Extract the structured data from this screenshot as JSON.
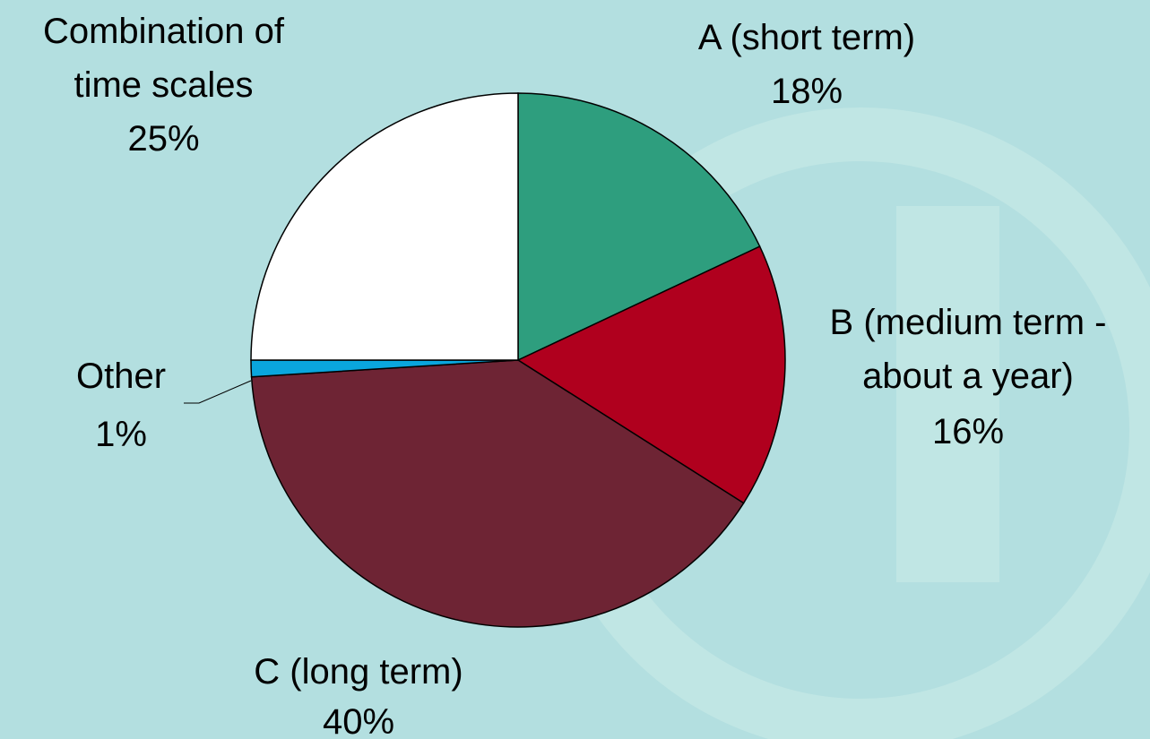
{
  "chart_data": {
    "type": "pie",
    "categories": [
      "A (short term)",
      "B (medium term - about a year)",
      "C (long term)",
      "Other",
      "Combination of time scales"
    ],
    "values": [
      18,
      16,
      40,
      1,
      25
    ],
    "value_labels": [
      "18%",
      "16%",
      "40%",
      "1%",
      "25%"
    ],
    "colors": [
      "#2e9e7e",
      "#b0001e",
      "#6e2434",
      "#0aa6dd",
      "#ffffff"
    ]
  }
}
